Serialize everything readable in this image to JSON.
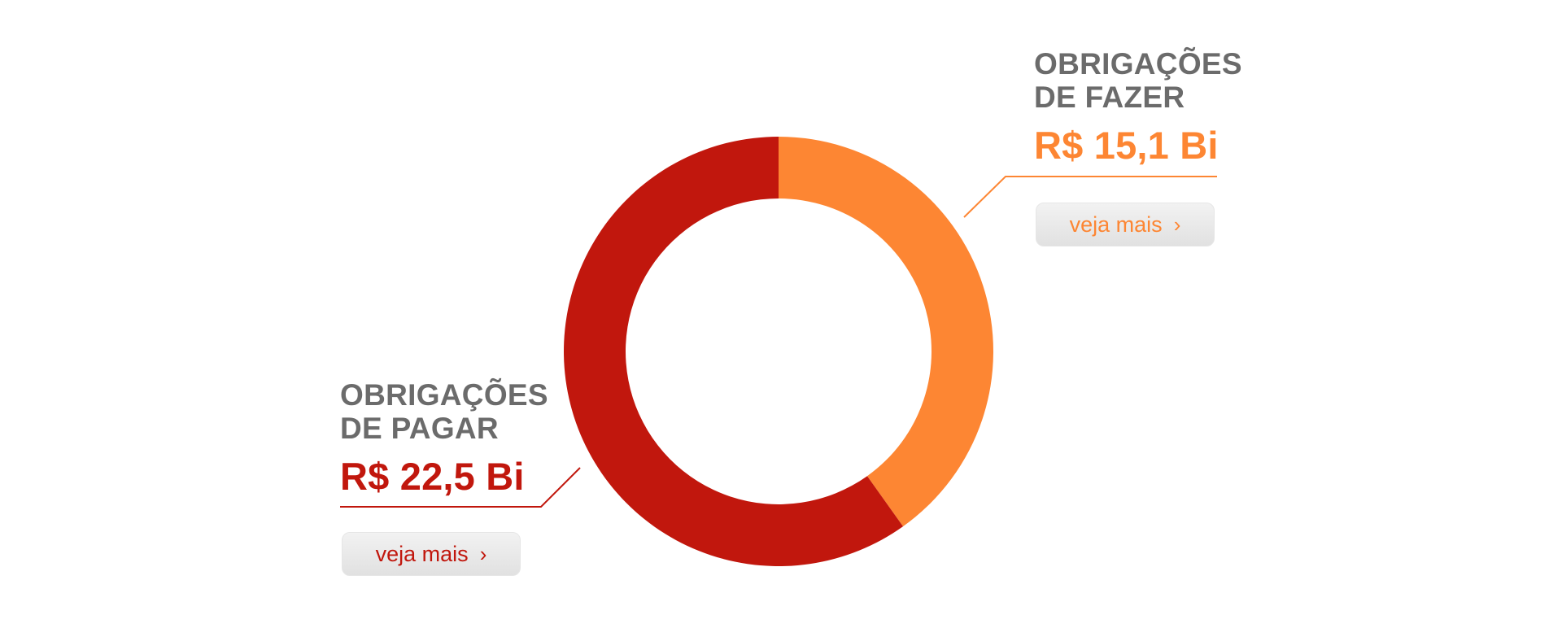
{
  "chart_data": {
    "type": "pie",
    "style": "donut",
    "slices": [
      {
        "title_line1": "OBRIGAÇÕES",
        "title_line2": "DE FAZER",
        "value": 15.1,
        "value_label": "R$ 15,1 Bi",
        "color": "#fd8633",
        "button_label": "veja mais"
      },
      {
        "title_line1": "OBRIGAÇÕES",
        "title_line2": "DE PAGAR",
        "value": 22.5,
        "value_label": "R$ 22,5 Bi",
        "color": "#c1170d",
        "button_label": "veja mais"
      }
    ]
  },
  "colors": {
    "title_gray": "#6b6b6b"
  },
  "icons": {
    "button_chevron": "chevron-right-icon"
  }
}
